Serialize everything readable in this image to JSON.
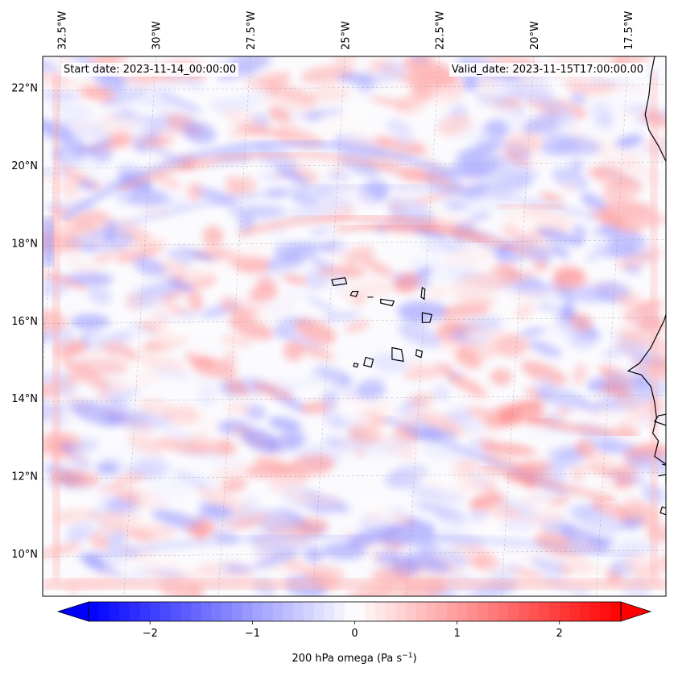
{
  "header": {
    "start_date": "Start date: 2023-11-14_00:00:00",
    "valid_date": "Valid_date: 2023-11-15T17:00:00.00"
  },
  "map": {
    "lon_range": [
      -33.0,
      -16.5
    ],
    "lat_range": [
      8.9,
      22.8
    ],
    "lon_ticks": [
      {
        "value": -32.5,
        "label": "32.5°W"
      },
      {
        "value": -30.0,
        "label": "30°W"
      },
      {
        "value": -27.5,
        "label": "27.5°W"
      },
      {
        "value": -25.0,
        "label": "25°W"
      },
      {
        "value": -22.5,
        "label": "22.5°W"
      },
      {
        "value": -20.0,
        "label": "20°W"
      },
      {
        "value": -17.5,
        "label": "17.5°W"
      }
    ],
    "lat_ticks": [
      {
        "value": 22,
        "label": "22°N"
      },
      {
        "value": 20,
        "label": "20°N"
      },
      {
        "value": 18,
        "label": "18°N"
      },
      {
        "value": 16,
        "label": "16°N"
      },
      {
        "value": 14,
        "label": "14°N"
      },
      {
        "value": 12,
        "label": "12°N"
      },
      {
        "value": 10,
        "label": "10°N"
      }
    ],
    "gridlines": true,
    "coastline_color": "#000000"
  },
  "colorbar": {
    "label_text": "200 hPa omega (Pa s",
    "label_exp": "−1",
    "label_close": ")",
    "range": [
      -2.6,
      2.6
    ],
    "extend": "both",
    "ticks": [
      {
        "value": -2,
        "label": "−2"
      },
      {
        "value": -1,
        "label": "−1"
      },
      {
        "value": 0,
        "label": "0"
      },
      {
        "value": 1,
        "label": "1"
      },
      {
        "value": 2,
        "label": "2"
      }
    ],
    "color_low": "#0000ff",
    "color_mid": "#ffffff",
    "color_high": "#ff0000"
  }
}
